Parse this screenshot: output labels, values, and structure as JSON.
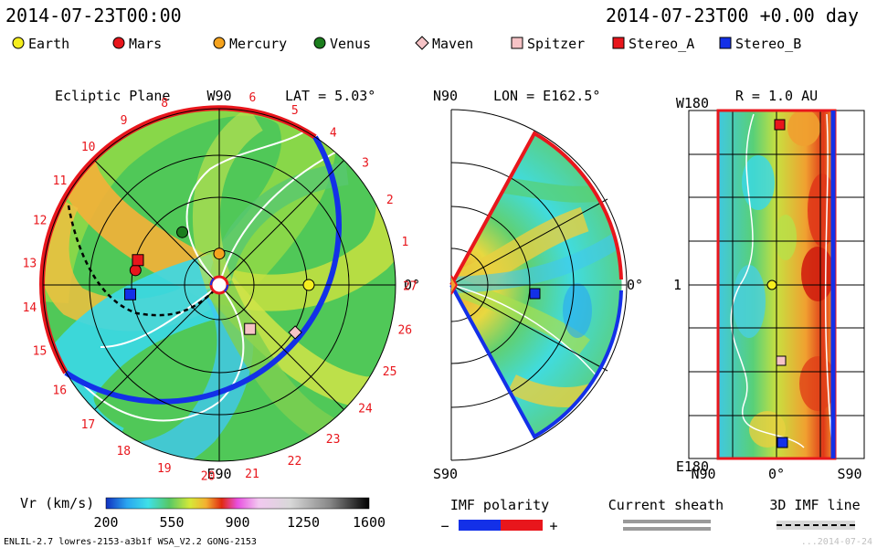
{
  "header": {
    "date_left": "2014-07-23T00:00",
    "date_right": "2014-07-23T00 +0.00 day"
  },
  "legend_objects": [
    {
      "name": "Earth",
      "shape": "circle",
      "color": "#f5ee1e"
    },
    {
      "name": "Mars",
      "shape": "circle",
      "color": "#e8161c"
    },
    {
      "name": "Mercury",
      "shape": "circle",
      "color": "#f5a31e"
    },
    {
      "name": "Venus",
      "shape": "circle",
      "color": "#1b7d1d"
    },
    {
      "name": "Maven",
      "shape": "diamond",
      "color": "#f6c3c6"
    },
    {
      "name": "Spitzer",
      "shape": "square",
      "color": "#f6c3c6"
    },
    {
      "name": "Stereo_A",
      "shape": "square",
      "color": "#e8161c"
    },
    {
      "name": "Stereo_B",
      "shape": "square",
      "color": "#1330e8"
    }
  ],
  "chart_data": [
    {
      "type": "heatmap",
      "panel": "ecliptic",
      "title": "Ecliptic Plane",
      "lat_label": "LAT = 5.03°",
      "top_label": "W90",
      "bottom_label": "E90",
      "right_label": "0°",
      "rotation_ticks": [
        "1",
        "2",
        "3",
        "4",
        "5",
        "6",
        "8",
        "9",
        "10",
        "11",
        "12",
        "13",
        "14",
        "15",
        "16",
        "17",
        "18",
        "19",
        "20",
        "21",
        "22",
        "23",
        "24",
        "25",
        "26",
        "27"
      ],
      "bodies": [
        {
          "name": "Earth",
          "r_au": 1.0,
          "lon_deg": 0
        },
        {
          "name": "Mercury",
          "r_au": 0.35,
          "lon_deg": 90
        },
        {
          "name": "Venus",
          "r_au": 0.72,
          "lon_deg": 125
        },
        {
          "name": "Mars",
          "r_au": 0.95,
          "lon_deg": 170
        },
        {
          "name": "Maven",
          "r_au": 1.0,
          "lon_deg": 328
        },
        {
          "name": "Spitzer",
          "r_au": 0.6,
          "lon_deg": 305
        },
        {
          "name": "Stereo_A",
          "r_au": 0.95,
          "lon_deg": 163
        },
        {
          "name": "Stereo_B",
          "r_au": 1.0,
          "lon_deg": 186
        }
      ]
    },
    {
      "type": "heatmap",
      "panel": "meridional",
      "lon_label": "LON = E162.5°",
      "top_label": "N90",
      "bottom_label": "S90",
      "right_label": "0°"
    },
    {
      "type": "heatmap",
      "panel": "sphere",
      "r_label": "R = 1.0 AU",
      "y_top": "W180",
      "y_mid": "1",
      "y_bottom": "E180",
      "x_left": "N90",
      "x_mid": "0°",
      "x_right": "S90"
    }
  ],
  "colorbar": {
    "label": "Vr (km/s)",
    "ticks": [
      "200",
      "550",
      "900",
      "1250",
      "1600"
    ],
    "range": [
      200,
      1600
    ]
  },
  "legend_lines": {
    "imf_title": "IMF polarity",
    "imf_minus": "−",
    "imf_plus": "+",
    "sheath_title": "Current sheath",
    "imf3d_title": "3D IMF line"
  },
  "footer": {
    "left": "ENLIL-2.7 lowres-2153-a3b1f WSA_V2.2 GONG-2153",
    "right": "...2014-07-24"
  }
}
